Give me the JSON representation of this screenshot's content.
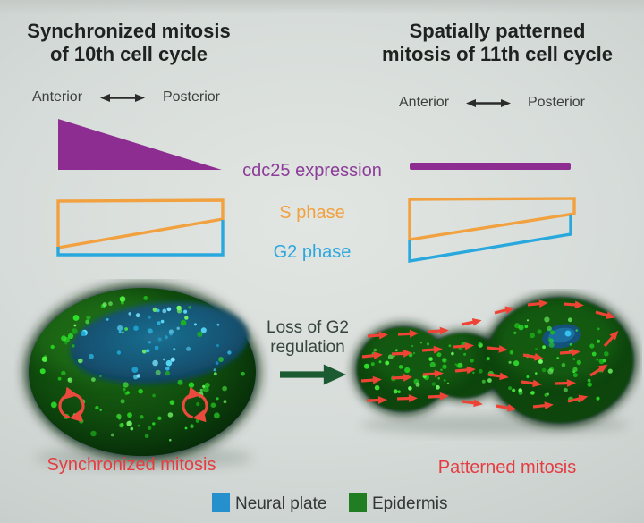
{
  "left_panel": {
    "title_line1": "Synchronized mitosis",
    "title_line2": "of 10th cell cycle",
    "axis": {
      "anterior": "Anterior",
      "posterior": "Posterior"
    },
    "embryo_caption": "Synchronized mitosis"
  },
  "right_panel": {
    "title_line1": "Spatially patterned",
    "title_line2": "mitosis of 11th cell cycle",
    "axis": {
      "anterior": "Anterior",
      "posterior": "Posterior"
    },
    "embryo_caption": "Patterned mitosis"
  },
  "center_labels": {
    "cdc25": "cdc25 expression",
    "s_phase": "S phase",
    "g2_phase": "G2 phase",
    "transition_line1": "Loss of G2",
    "transition_line2": "regulation"
  },
  "legend": {
    "items": [
      {
        "label": "Neural plate",
        "color": "#2590cc"
      },
      {
        "label": "Epidermis",
        "color": "#217d21"
      }
    ]
  },
  "colors": {
    "cdc25_purple": "#8e2d91",
    "s_phase_orange": "#f2a140",
    "g2_phase_blue": "#2ba7dd",
    "mitosis_red": "#e63c41",
    "transition_arrow_green": "#1c5b31",
    "embryo_body_green": "#0d4410",
    "neural_plate_fill": "#155a7c"
  },
  "figure": {
    "dot_colors": {
      "green": [
        "#2ee32b",
        "#4df53f",
        "#1db81a",
        "#72f765",
        "#25cf22"
      ],
      "cyan": [
        "#33c4f0",
        "#58d9f8",
        "#1fa5d5",
        "#7ce6ff"
      ]
    },
    "left_embryo": {
      "dot_count": 135,
      "dot_seed": 7
    },
    "right_embryo": {
      "dot_count": 115,
      "dot_seed": 11,
      "arrows": [
        [
          28,
          53,
          -4
        ],
        [
          62,
          51,
          -3
        ],
        [
          96,
          48,
          -4
        ],
        [
          133,
          40,
          -12
        ],
        [
          170,
          27,
          -14
        ],
        [
          207,
          18,
          -6
        ],
        [
          247,
          17,
          4
        ],
        [
          283,
          26,
          16
        ],
        [
          22,
          76,
          -6
        ],
        [
          55,
          73,
          -3
        ],
        [
          89,
          69,
          -4
        ],
        [
          124,
          65,
          -4
        ],
        [
          162,
          66,
          6
        ],
        [
          202,
          74,
          10
        ],
        [
          243,
          72,
          -4
        ],
        [
          21,
          103,
          -4
        ],
        [
          55,
          100,
          -3
        ],
        [
          90,
          96,
          -4
        ],
        [
          126,
          92,
          -5
        ],
        [
          163,
          96,
          8
        ],
        [
          200,
          104,
          8
        ],
        [
          238,
          106,
          -2
        ],
        [
          27,
          125,
          -2
        ],
        [
          61,
          123,
          -2
        ],
        [
          96,
          121,
          -3
        ],
        [
          134,
          126,
          8
        ],
        [
          172,
          131,
          10
        ],
        [
          213,
          132,
          -6
        ],
        [
          252,
          126,
          -14
        ],
        [
          277,
          97,
          -32
        ],
        [
          293,
          64,
          -48
        ]
      ]
    }
  }
}
